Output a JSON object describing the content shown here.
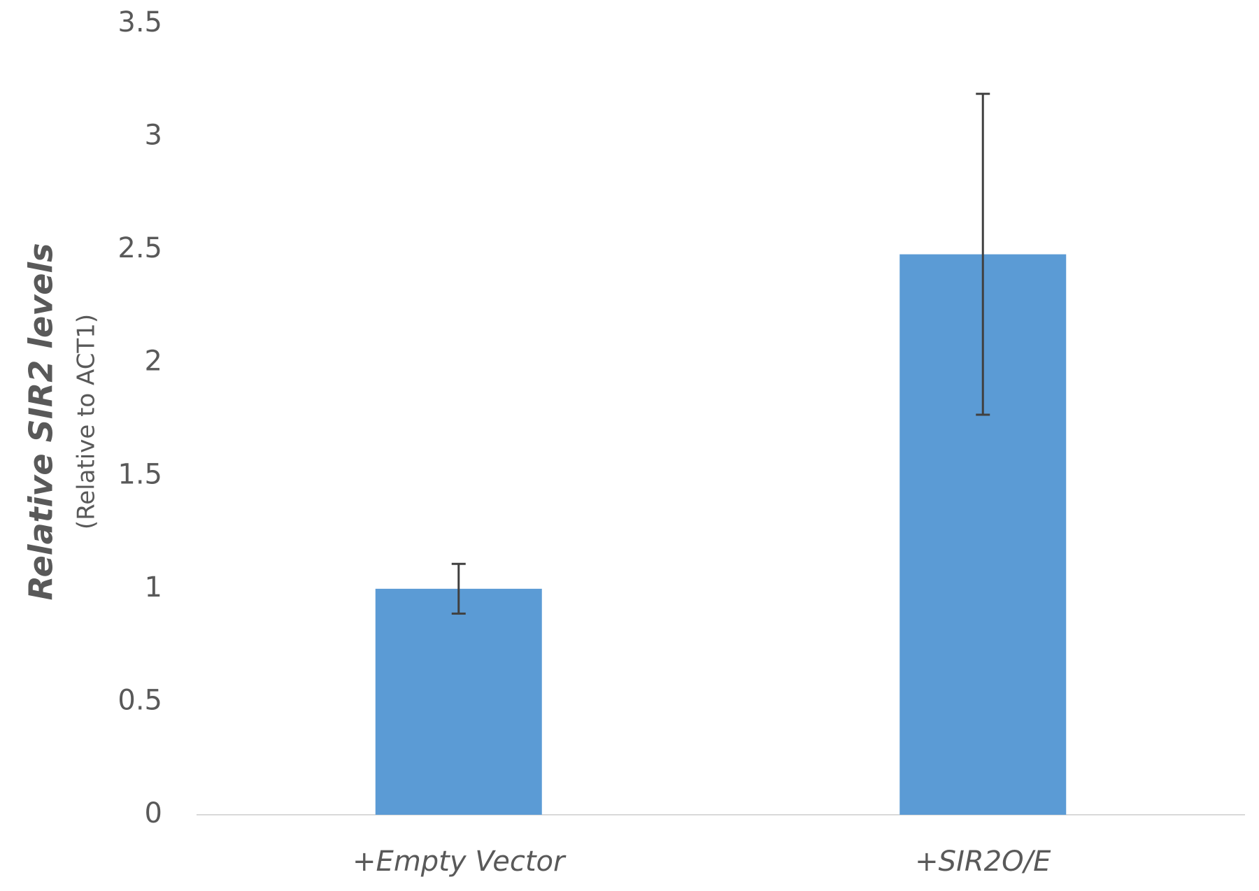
{
  "chart_data": {
    "type": "bar",
    "ylabel": "Relative SIR2 levels",
    "ylabel_sub": "(Relative to ACT1)",
    "categories": [
      "+Empty Vector",
      "+SIR2O/E"
    ],
    "values": [
      1.0,
      2.48
    ],
    "errors": [
      0.11,
      0.71
    ],
    "color": "#5b9bd5",
    "ylim": [
      0,
      3.5
    ],
    "yticks": [
      0,
      0.5,
      1,
      1.5,
      2,
      2.5,
      3,
      3.5
    ],
    "grid": false
  }
}
